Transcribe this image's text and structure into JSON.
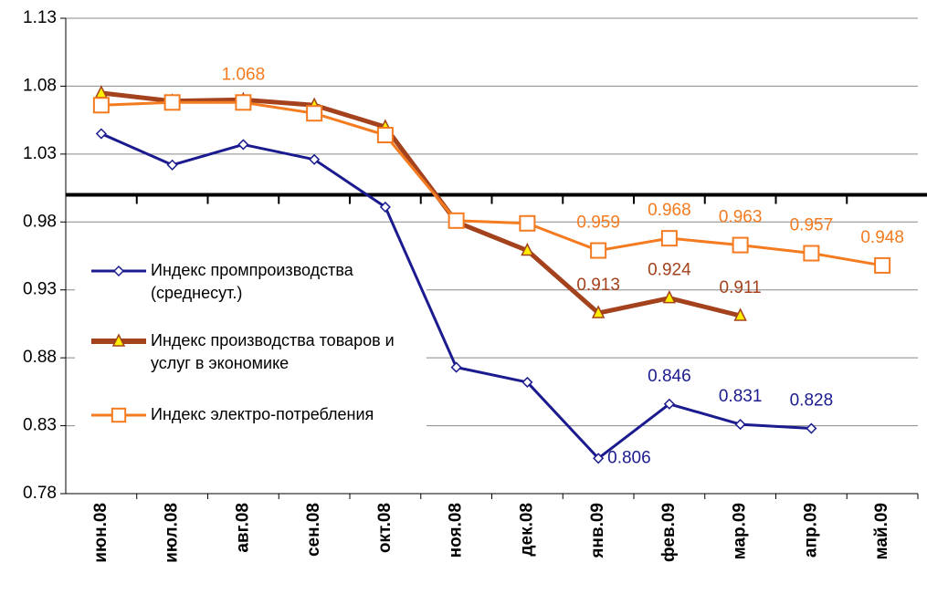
{
  "chart_data": {
    "type": "line",
    "categories": [
      "июн.08",
      "июл.08",
      "авг.08",
      "сен.08",
      "окт.08",
      "ноя.08",
      "дек.08",
      "янв.09",
      "фев.09",
      "мар.09",
      "апр.09",
      "май.09"
    ],
    "series": [
      {
        "name": "Индекс промпроизводства (среднесут.)",
        "color": "#1b1b8f",
        "marker": "diamond",
        "values": [
          1.045,
          1.022,
          1.037,
          1.026,
          0.991,
          0.873,
          0.862,
          0.806,
          0.846,
          0.831,
          0.828,
          null
        ],
        "value_labels": [
          null,
          null,
          null,
          null,
          null,
          null,
          null,
          "0.806",
          "0.846",
          "0.831",
          "0.828",
          null
        ]
      },
      {
        "name": "Индекс производства товаров и услуг в экономике",
        "color": "#a3421c",
        "marker": "triangle",
        "values": [
          1.075,
          1.069,
          1.07,
          1.066,
          1.05,
          0.98,
          0.959,
          0.913,
          0.924,
          0.911,
          null,
          null
        ],
        "value_labels": [
          null,
          null,
          null,
          null,
          null,
          null,
          null,
          "0.913",
          "0.924",
          "0.911",
          null,
          null
        ]
      },
      {
        "name": "Индекс электро-потребления",
        "color": "#f47b20",
        "marker": "square",
        "values": [
          1.066,
          1.068,
          1.068,
          1.06,
          1.044,
          0.981,
          0.979,
          0.959,
          0.968,
          0.963,
          0.957,
          0.948
        ],
        "value_labels": [
          null,
          null,
          "1.068",
          null,
          null,
          null,
          null,
          "0.959",
          "0.968",
          "0.963",
          "0.957",
          "0.948"
        ]
      }
    ],
    "ylim": [
      0.78,
      1.13
    ],
    "yticks": [
      0.78,
      0.83,
      0.88,
      0.93,
      0.98,
      1.03,
      1.08,
      1.13
    ],
    "reference_line": 1,
    "grid": true,
    "legend": "left"
  }
}
